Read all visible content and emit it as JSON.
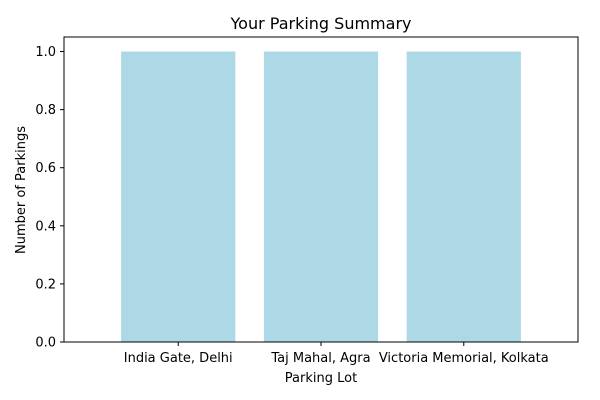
{
  "chart_data": {
    "type": "bar",
    "title": "Your Parking Summary",
    "xlabel": "Parking Lot",
    "ylabel": "Number of Parkings",
    "categories": [
      "India Gate, Delhi",
      "Taj Mahal, Agra",
      "Victoria Memorial, Kolkata"
    ],
    "values": [
      1,
      1,
      1
    ],
    "ylim": [
      0,
      1.05
    ],
    "yticks": [
      "0.0",
      "0.2",
      "0.4",
      "0.6",
      "0.8",
      "1.0"
    ],
    "bar_color": "#add8e6",
    "grid": false,
    "legend": "none"
  }
}
